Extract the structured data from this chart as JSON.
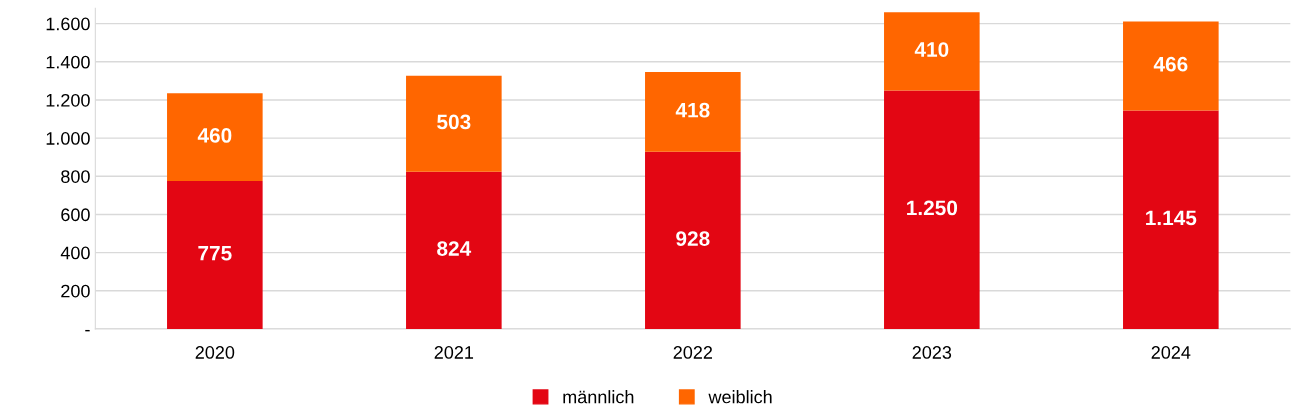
{
  "chart_data": {
    "type": "bar",
    "stacked": true,
    "categories": [
      "2020",
      "2021",
      "2022",
      "2023",
      "2024"
    ],
    "series": [
      {
        "name": "männlich",
        "color": "#e30613",
        "values": [
          775,
          824,
          928,
          1250,
          1145
        ],
        "value_labels": [
          "775",
          "824",
          "928",
          "1.250",
          "1.145"
        ]
      },
      {
        "name": "weiblich",
        "color": "#ff6600",
        "values": [
          460,
          503,
          418,
          410,
          466
        ],
        "value_labels": [
          "460",
          "503",
          "418",
          "410",
          "466"
        ]
      }
    ],
    "ylim": [
      0,
      1680
    ],
    "yticks": [
      {
        "value": 0,
        "label": "-"
      },
      {
        "value": 200,
        "label": "200"
      },
      {
        "value": 400,
        "label": "400"
      },
      {
        "value": 600,
        "label": "600"
      },
      {
        "value": 800,
        "label": "800"
      },
      {
        "value": 1000,
        "label": "1.000"
      },
      {
        "value": 1200,
        "label": "1.200"
      },
      {
        "value": 1400,
        "label": "1.400"
      },
      {
        "value": 1600,
        "label": "1.600"
      }
    ],
    "grid": "y",
    "legend": "bottom"
  }
}
